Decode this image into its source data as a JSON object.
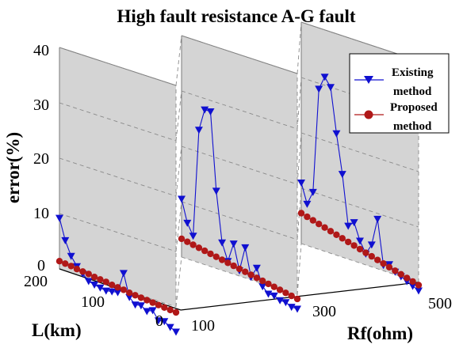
{
  "chart_data": {
    "type": "line",
    "title": "High fault resistance A-G fault",
    "zlabel": "error(%)",
    "xlabel": "L(km)",
    "ylabel": "Rf(ohm)",
    "z_ticks": [
      "0",
      "10",
      "20",
      "30",
      "40"
    ],
    "l_ticks": [
      "200",
      "100",
      "0"
    ],
    "rf_ticks": [
      "100",
      "300",
      "500"
    ],
    "zlim": [
      0,
      40
    ],
    "grid": true,
    "legend_position": "top-right",
    "colors": {
      "existing": "#1010d0",
      "proposed": "#b01818",
      "pane": "#d4d4d4"
    },
    "markers": {
      "existing": "triangle-down",
      "proposed": "circle"
    },
    "series": [
      {
        "name": "Existing method",
        "panels": [
          {
            "rf": 100,
            "values": [
              9.2,
              5.5,
              3.0,
              1.5,
              0.5,
              -0.5,
              -0.8,
              -1.0,
              -1.2,
              -1.0,
              -0.8,
              3.0,
              -1.0,
              -2.0,
              -1.8,
              -2.5,
              -2.0,
              -3.5,
              -3.3,
              -4.0,
              -4.5
            ]
          },
          {
            "rf": 300,
            "values": [
              10.5,
              6.5,
              4.5,
              24.0,
              28.0,
              28.0,
              14.0,
              5.0,
              2.0,
              5.5,
              1.0,
              5.5,
              0.5,
              2.5,
              -0.5,
              -1.5,
              -1.5,
              -2.0,
              -2.0,
              -2.5,
              -2.5
            ]
          },
          {
            "rf": 500,
            "values": [
              11.0,
              7.5,
              10.0,
              29.0,
              31.5,
              30.0,
              22.0,
              15.0,
              6.0,
              7.0,
              4.0,
              2.0,
              4.0,
              9.0,
              1.0,
              1.5,
              0.5,
              0.0,
              -0.5,
              -1.0,
              -1.5
            ]
          }
        ]
      },
      {
        "name": "Proposed method",
        "panels": [
          {
            "rf": 100,
            "values": [
              1.4,
              1.3,
              1.2,
              1.0,
              0.9,
              0.8,
              0.6,
              0.5,
              0.4,
              0.2,
              0.1,
              0.0,
              -0.2,
              -0.3,
              -0.4,
              -0.5,
              -0.6,
              -0.7,
              -0.8,
              -0.9,
              -1.0
            ]
          },
          {
            "rf": 300,
            "values": [
              3.3,
              3.1,
              2.9,
              2.7,
              2.5,
              2.3,
              2.1,
              1.9,
              1.7,
              1.5,
              1.3,
              1.1,
              0.9,
              0.7,
              0.5,
              0.3,
              0.1,
              -0.1,
              -0.3,
              -0.5,
              -0.7
            ]
          },
          {
            "rf": 500,
            "values": [
              5.5,
              5.2,
              4.9,
              4.6,
              4.3,
              4.0,
              3.7,
              3.4,
              3.1,
              2.8,
              2.5,
              2.2,
              1.9,
              1.6,
              1.3,
              1.0,
              0.7,
              0.4,
              0.1,
              -0.2,
              -0.5
            ]
          }
        ]
      }
    ],
    "legend": {
      "existing_line1": "Existing",
      "existing_line2": "method",
      "proposed_line1": "Proposed",
      "proposed_line2": "method"
    }
  }
}
